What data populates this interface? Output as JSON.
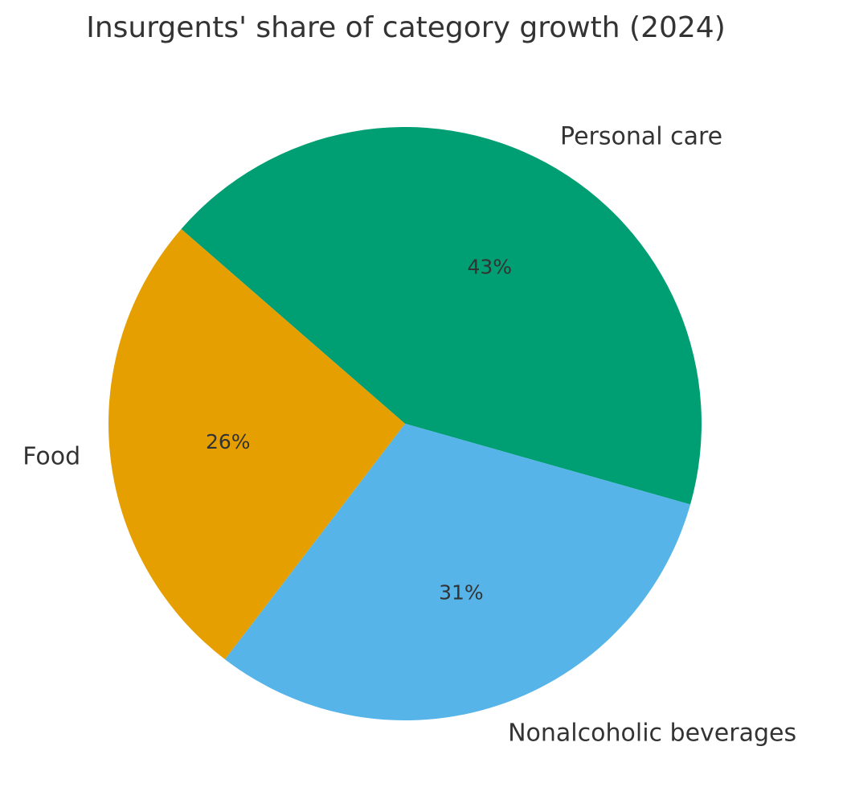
{
  "chart_data": {
    "type": "pie",
    "title": "Insurgents' share of category growth (2024)",
    "categories": [
      "Personal care",
      "Nonalcoholic beverages",
      "Food"
    ],
    "values": [
      43,
      31,
      26
    ],
    "value_labels": [
      "43%",
      "31%",
      "26%"
    ],
    "colors": [
      "#009E73",
      "#56B4E9",
      "#E69F00"
    ],
    "start_angle_deg": 139,
    "direction": "clockwise"
  }
}
